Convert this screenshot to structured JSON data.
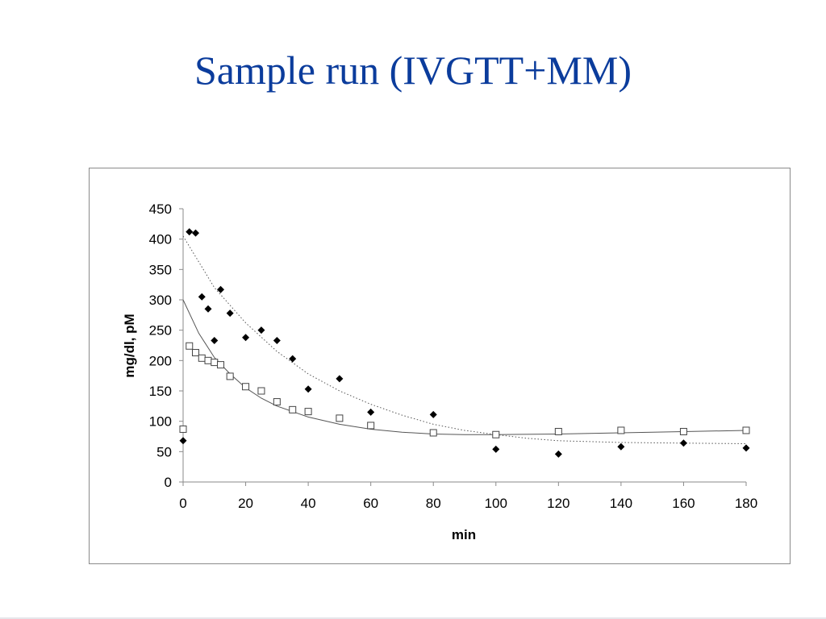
{
  "slide": {
    "title": "Sample run (IVGTT+MM)"
  },
  "colors": {
    "title": "#0b3c9c",
    "axis": "#8a8a8a",
    "marker": "#000000",
    "curve": "#555555"
  },
  "chart_data": {
    "type": "scatter",
    "title": "",
    "xlabel": "min",
    "ylabel": "mg/dl, pM",
    "xlim": [
      0,
      180
    ],
    "ylim": [
      0,
      450
    ],
    "xticks": [
      0,
      20,
      40,
      60,
      80,
      100,
      120,
      140,
      160,
      180
    ],
    "yticks": [
      0,
      50,
      100,
      150,
      200,
      250,
      300,
      350,
      400,
      450
    ],
    "grid": false,
    "legend": "none",
    "series": [
      {
        "marker": "filled-diamond",
        "x": [
          0,
          2,
          4,
          6,
          8,
          10,
          12,
          15,
          20,
          25,
          30,
          35,
          40,
          50,
          60,
          80,
          100,
          120,
          140,
          160,
          180
        ],
        "y": [
          68,
          412,
          410,
          305,
          285,
          233,
          317,
          278,
          238,
          250,
          233,
          203,
          153,
          170,
          115,
          111,
          54,
          46,
          58,
          64,
          56
        ]
      },
      {
        "marker": "open-square",
        "x": [
          0,
          2,
          4,
          6,
          8,
          10,
          12,
          15,
          20,
          25,
          30,
          35,
          40,
          50,
          60,
          80,
          100,
          120,
          140,
          160,
          180
        ],
        "y": [
          87,
          224,
          213,
          204,
          200,
          197,
          193,
          174,
          157,
          150,
          132,
          119,
          116,
          105,
          93,
          81,
          78,
          83,
          85,
          83,
          85
        ]
      },
      {
        "style": "dotted-curve",
        "x": [
          0,
          10,
          20,
          30,
          40,
          50,
          60,
          70,
          80,
          90,
          100,
          110,
          120,
          140,
          160,
          180
        ],
        "y": [
          405,
          320,
          262,
          215,
          178,
          150,
          128,
          110,
          95,
          85,
          78,
          72,
          68,
          65,
          64,
          63
        ]
      },
      {
        "style": "solid-curve",
        "x": [
          0,
          5,
          10,
          15,
          20,
          25,
          30,
          40,
          50,
          60,
          70,
          80,
          90,
          100,
          120,
          140,
          160,
          180
        ],
        "y": [
          300,
          245,
          205,
          178,
          155,
          138,
          125,
          107,
          95,
          87,
          82,
          79,
          78,
          78,
          79,
          81,
          83,
          85
        ]
      }
    ]
  }
}
